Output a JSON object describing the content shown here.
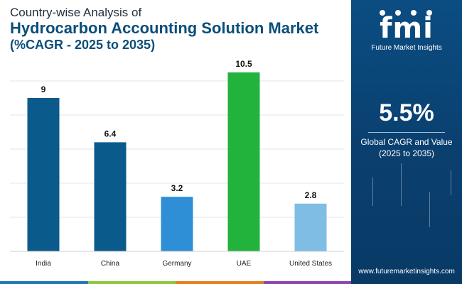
{
  "header": {
    "line1": "Country-wise Analysis of",
    "line2": "Hydrocarbon Accounting Solution Market",
    "line3": "(%CAGR - 2025 to 2035)"
  },
  "sidebar": {
    "logo_mark": "fmi",
    "logo_text": "Future Market Insights",
    "cagr_value": "5.5%",
    "cagr_label_1": "Global CAGR and Value",
    "cagr_label_2": "(2025 to 2035)",
    "website": "www.futuremarketinsights.com",
    "bg_color": "#0b4d82"
  },
  "bottom_bar_colors": [
    "#1f77b4",
    "#8dc63f",
    "#e67e22",
    "#8e44ad"
  ],
  "chart_data": {
    "type": "bar",
    "categories": [
      "India",
      "China",
      "Germany",
      "UAE",
      "United States"
    ],
    "values": [
      9,
      6.4,
      3.2,
      10.5,
      2.8
    ],
    "data_labels": [
      "9",
      "6.4",
      "3.2",
      "10.5",
      "2.8"
    ],
    "colors": [
      "#0b5a8c",
      "#0b5a8c",
      "#2f8fd6",
      "#22b33c",
      "#7fbde4"
    ],
    "title": "Hydrocarbon Accounting Solution Market",
    "xlabel": "",
    "ylabel": "",
    "ylim": [
      0,
      11
    ],
    "grid": true
  }
}
